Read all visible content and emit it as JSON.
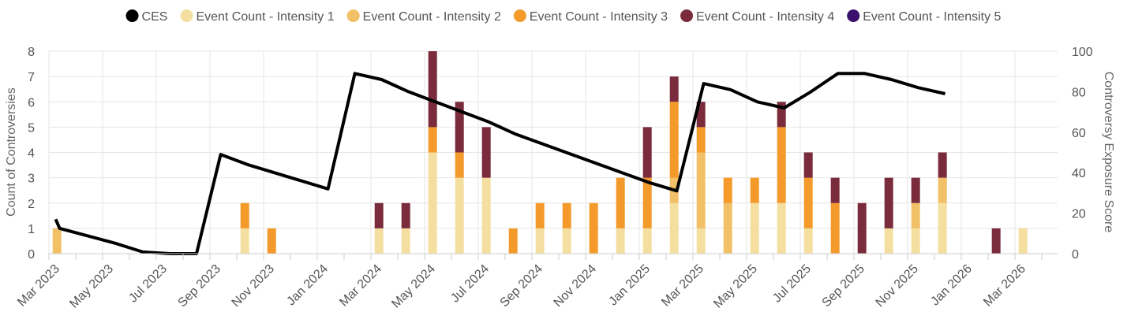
{
  "chart_data": {
    "type": "bar",
    "title": "",
    "xlabel": "",
    "ylabel": "Count of Controversies",
    "y2label": "Controversy Exposure Score",
    "ylim": [
      0,
      8
    ],
    "y2lim": [
      0,
      100
    ],
    "yticks": [
      "0",
      "1",
      "2",
      "3",
      "4",
      "5",
      "6",
      "7",
      "8"
    ],
    "y2ticks": [
      "0",
      "20",
      "40",
      "60",
      "80",
      "100"
    ],
    "legend_position": "top",
    "x_tick_labels": [
      "Mar 2023",
      "May 2023",
      "Jul 2023",
      "Sep 2023",
      "Nov 2023",
      "Jan 2024",
      "Mar 2024",
      "May 2024",
      "Jul 2024",
      "Sep 2024",
      "Nov 2024",
      "Jan 2025",
      "Mar 2025",
      "May 2025",
      "Jul 2025",
      "Sep 2025",
      "Nov 2025",
      "Jan 2026",
      "Mar 2026"
    ],
    "categories": [
      "Mar 2023",
      "Apr 2023",
      "May 2023",
      "Jun 2023",
      "Jul 2023",
      "Aug 2023",
      "Sep 2023",
      "Oct 2023",
      "Nov 2023",
      "Dec 2023",
      "Jan 2024",
      "Feb 2024",
      "Mar 2024",
      "Apr 2024",
      "May 2024",
      "Jun 2024",
      "Jul 2024",
      "Aug 2024",
      "Sep 2024",
      "Oct 2024",
      "Nov 2024",
      "Dec 2024",
      "Jan 2025",
      "Feb 2025",
      "Mar 2025",
      "Apr 2025",
      "May 2025",
      "Jun 2025",
      "Jul 2025",
      "Aug 2025",
      "Sep 2025",
      "Oct 2025",
      "Nov 2025",
      "Dec 2025",
      "Jan 2026",
      "Feb 2026",
      "Mar 2026"
    ],
    "series": [
      {
        "name": "Event Count - Intensity 1",
        "color": "#f5dfa0",
        "values": [
          0,
          0,
          0,
          0,
          0,
          0,
          0,
          1,
          0,
          0,
          0,
          0,
          1,
          1,
          4,
          3,
          3,
          0,
          1,
          1,
          0,
          1,
          1,
          2,
          1,
          0,
          2,
          2,
          1,
          0,
          0,
          1,
          1,
          2,
          0,
          0,
          1
        ]
      },
      {
        "name": "Event Count - Intensity 2",
        "color": "#f2c066",
        "values": [
          1,
          0,
          0,
          0,
          0,
          0,
          0,
          0,
          0,
          0,
          0,
          0,
          0,
          0,
          0,
          0,
          0,
          0,
          0,
          0,
          0,
          0,
          0,
          1,
          3,
          2,
          0,
          0,
          0,
          0,
          0,
          0,
          1,
          1,
          0,
          0,
          0
        ]
      },
      {
        "name": "Event Count - Intensity 3",
        "color": "#f39a2b",
        "values": [
          0,
          0,
          0,
          0,
          0,
          0,
          0,
          1,
          1,
          0,
          0,
          0,
          0,
          0,
          1,
          1,
          0,
          1,
          1,
          1,
          2,
          2,
          2,
          3,
          1,
          1,
          1,
          3,
          2,
          2,
          0,
          0,
          0,
          0,
          0,
          0,
          0
        ]
      },
      {
        "name": "Event Count - Intensity 4",
        "color": "#7a2b3c",
        "values": [
          0,
          0,
          0,
          0,
          0,
          0,
          0,
          0,
          0,
          0,
          0,
          0,
          1,
          1,
          3,
          2,
          2,
          0,
          0,
          0,
          0,
          0,
          2,
          1,
          1,
          0,
          0,
          1,
          1,
          1,
          2,
          2,
          1,
          1,
          0,
          1,
          0
        ]
      },
      {
        "name": "Event Count - Intensity 5",
        "color": "#3b0f6e",
        "values": [
          0,
          0,
          0,
          0,
          0,
          0,
          0,
          0,
          0,
          0,
          0,
          0,
          0,
          0,
          0,
          0,
          0,
          0,
          0,
          0,
          0,
          0,
          0,
          0,
          0,
          0,
          0,
          0,
          0,
          0,
          0,
          0,
          0,
          0,
          0,
          0,
          0
        ]
      }
    ],
    "line": {
      "name": "CES",
      "color": "#000000",
      "points": [
        {
          "x": 0.25,
          "y": 17
        },
        {
          "x": 0.4,
          "y": 12.5
        },
        {
          "x": 2.5,
          "y": 5
        },
        {
          "x": 3.5,
          "y": 0.8
        },
        {
          "x": 4.5,
          "y": 0
        },
        {
          "x": 5.5,
          "y": 0
        },
        {
          "x": 6.4,
          "y": 49
        },
        {
          "x": 7.4,
          "y": 44
        },
        {
          "x": 10.4,
          "y": 32
        },
        {
          "x": 11.4,
          "y": 89
        },
        {
          "x": 12.4,
          "y": 86
        },
        {
          "x": 13.4,
          "y": 80
        },
        {
          "x": 16.4,
          "y": 65
        },
        {
          "x": 17.4,
          "y": 59
        },
        {
          "x": 22.4,
          "y": 35
        },
        {
          "x": 23.4,
          "y": 31
        },
        {
          "x": 24.4,
          "y": 84
        },
        {
          "x": 25.4,
          "y": 81
        },
        {
          "x": 26.4,
          "y": 75
        },
        {
          "x": 27.4,
          "y": 72
        },
        {
          "x": 28.4,
          "y": 80
        },
        {
          "x": 29.4,
          "y": 89
        },
        {
          "x": 30.4,
          "y": 89
        },
        {
          "x": 31.4,
          "y": 86
        },
        {
          "x": 32.4,
          "y": 82
        },
        {
          "x": 33.4,
          "y": 79
        }
      ]
    }
  }
}
